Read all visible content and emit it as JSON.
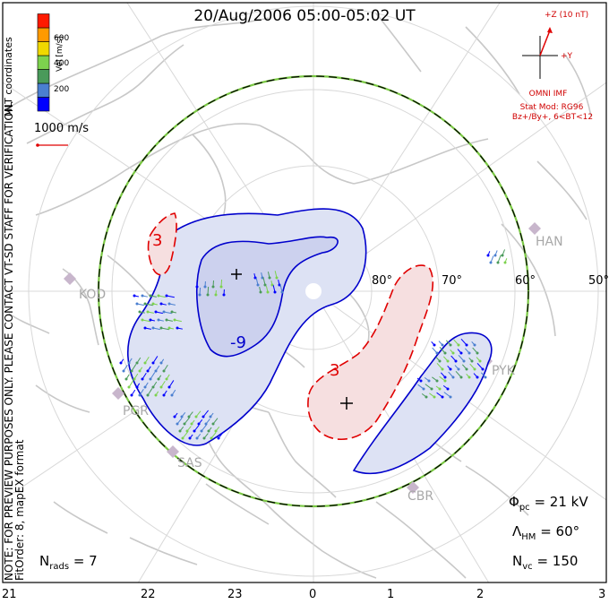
{
  "header": {
    "title": "20/Aug/2006 05:00-05:02 UT"
  },
  "side_note": {
    "line1": "NOTE: FOR PREVIEW PURPOSES ONLY. PLEASE CONTACT VT-SD STAFF FOR VERIFICATION.",
    "line2": "FitOrder: 8, mapEX format",
    "coords": "MLT coordinates"
  },
  "colorbar": {
    "label": "Vel [m/s]",
    "ticks": [
      "600",
      "400",
      "200"
    ],
    "colors": [
      "#0000ff",
      "#4a7fd0",
      "#4a9a5a",
      "#7dd24e",
      "#f0d800",
      "#ff9a00",
      "#ff1a00"
    ]
  },
  "velocity_ref": {
    "label": "1000 m/s",
    "color": "#e00000"
  },
  "imf": {
    "bz_label": "+Z (10 nT)",
    "by_label": "+Y",
    "source": "OMNI IMF",
    "stat_model": "Stat Mod: RG96",
    "condition": "Bz+/By+, 6<BT<12"
  },
  "stats": {
    "phi_symbol": "Φ",
    "phi_sub": "pc",
    "phi_value": "= 21 kV",
    "lambda_symbol": "Λ",
    "lambda_sub": "HM",
    "lambda_value": "= 60°",
    "nvc_symbol": "N",
    "nvc_sub": "vc",
    "nvc_value": "= 150",
    "nrads_symbol": "N",
    "nrads_sub": "rads",
    "nrads_value": "= 7"
  },
  "mlt_ticks": [
    "21",
    "22",
    "23",
    "0",
    "1",
    "2",
    "3"
  ],
  "latitude_labels": [
    "80°",
    "70°",
    "60°",
    "50°"
  ],
  "radars": [
    "HAN",
    "KOD",
    "PGR",
    "SAS",
    "PYK",
    "CBR"
  ],
  "contours": {
    "negative_value": "-9",
    "positive_value": "3",
    "positive_value_small": "3"
  },
  "colors": {
    "negative": "#0000cc",
    "positive": "#e00000",
    "hm_boundary": "#7ac943"
  }
}
